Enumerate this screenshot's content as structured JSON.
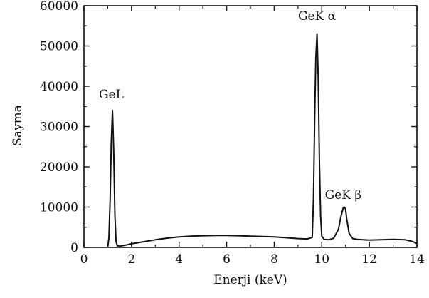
{
  "chart_data": {
    "type": "line",
    "xlabel": "Enerji (keV)",
    "ylabel": "Sayma",
    "xlim": [
      0,
      14
    ],
    "ylim": [
      0,
      60000
    ],
    "x_ticks": [
      0,
      2,
      4,
      6,
      8,
      10,
      12,
      14
    ],
    "y_ticks": [
      0,
      10000,
      20000,
      30000,
      40000,
      50000,
      60000
    ],
    "grid": false,
    "line_color": "#111111",
    "series": [
      {
        "x": [
          1.0,
          1.05,
          1.1,
          1.15,
          1.2,
          1.25,
          1.3,
          1.35,
          1.4,
          1.5,
          1.7,
          2.0,
          2.5,
          3.0,
          3.5,
          4.0,
          4.5,
          5.0,
          5.5,
          6.0,
          6.5,
          7.0,
          7.5,
          8.0,
          8.5,
          9.0,
          9.4,
          9.6,
          9.65,
          9.7,
          9.75,
          9.8,
          9.85,
          9.9,
          9.95,
          10.0,
          10.1,
          10.3,
          10.5,
          10.7,
          10.8,
          10.9,
          10.95,
          11.0,
          11.05,
          11.15,
          11.3,
          11.5,
          12.0,
          12.5,
          13.0,
          13.5,
          13.8,
          14.0
        ],
        "y": [
          0,
          2500,
          12000,
          26000,
          34000,
          24000,
          8000,
          1500,
          400,
          300,
          500,
          900,
          1400,
          1900,
          2300,
          2600,
          2800,
          2900,
          2950,
          2950,
          2900,
          2800,
          2700,
          2600,
          2400,
          2200,
          2100,
          2500,
          12000,
          32000,
          47000,
          53000,
          42000,
          22000,
          8000,
          2800,
          2000,
          1900,
          2300,
          4500,
          7500,
          9800,
          10000,
          9500,
          7000,
          3500,
          2200,
          2000,
          1800,
          1900,
          2000,
          1900,
          1500,
          1000
        ]
      }
    ],
    "annotations": [
      {
        "text": "GeL",
        "x": 1.15,
        "y": 37000
      },
      {
        "text": "GeK α",
        "x": 9.8,
        "y": 56500
      },
      {
        "text": "GeK β",
        "x": 10.9,
        "y": 12000
      }
    ]
  }
}
